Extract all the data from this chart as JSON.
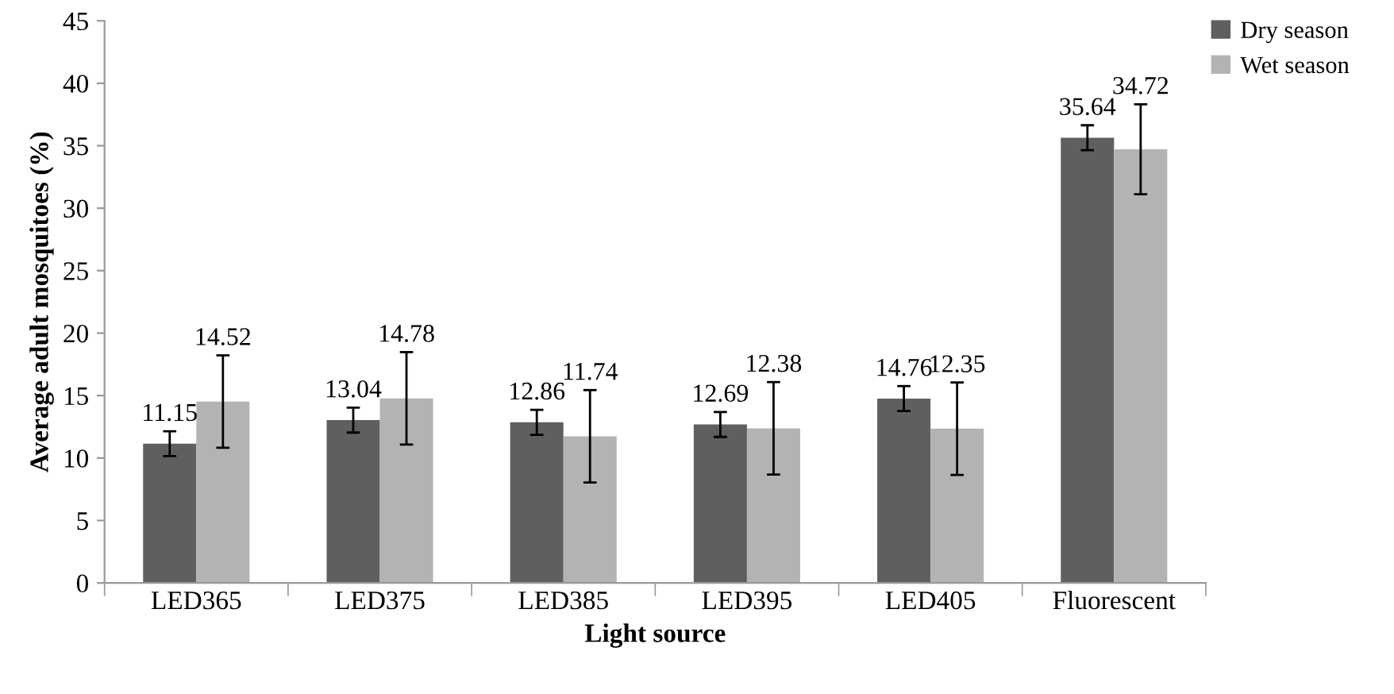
{
  "chart_data": {
    "type": "bar",
    "xlabel": "Light source",
    "ylabel": "Average adult mosquitoes (%)",
    "categories": [
      "LED365",
      "LED375",
      "LED385",
      "LED395",
      "LED405",
      "Fluorescent"
    ],
    "series": [
      {
        "name": "Dry season",
        "color": "#5f5f5f",
        "values": [
          11.15,
          13.04,
          12.86,
          12.69,
          14.76,
          35.64
        ],
        "errors": [
          1,
          1,
          1,
          1,
          1,
          1
        ]
      },
      {
        "name": "Wet season",
        "color": "#b3b3b3",
        "values": [
          14.52,
          14.78,
          11.74,
          12.38,
          12.35,
          34.72
        ],
        "errors": [
          3.7,
          3.7,
          3.7,
          3.7,
          3.7,
          3.6
        ]
      }
    ],
    "ylim": [
      0,
      45
    ],
    "yticks": [
      0,
      5,
      10,
      15,
      20,
      25,
      30,
      35,
      40,
      45
    ],
    "data_labels": true,
    "grid": false,
    "legend": "top right"
  }
}
